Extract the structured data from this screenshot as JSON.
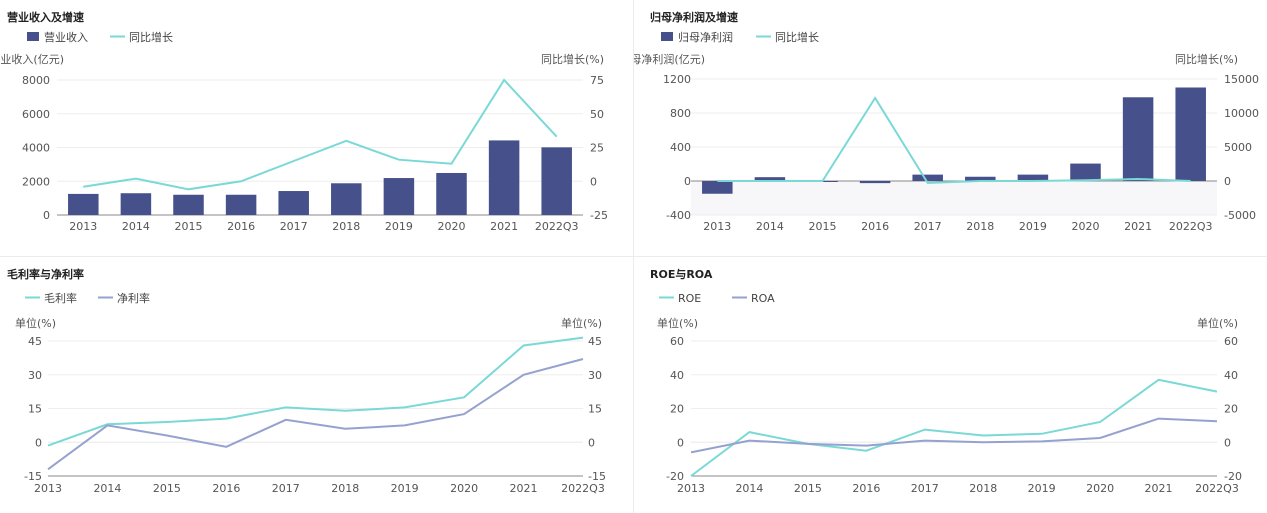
{
  "colors": {
    "bar": "#46508a",
    "growth_line": "#7ad9d6",
    "teal_line": "#7ad9d6",
    "purple_line": "#95a2cf",
    "axis": "#888888",
    "grid": "#eeeeee",
    "text": "#555555"
  },
  "chart_data": [
    {
      "type": "bar",
      "title": "营业收入及增速",
      "categories": [
        "2013",
        "2014",
        "2015",
        "2016",
        "2017",
        "2018",
        "2019",
        "2020",
        "2021",
        "2022Q3"
      ],
      "series": [
        {
          "name": "营业收入",
          "type": "bar",
          "axis": "left",
          "values": [
            1250,
            1290,
            1200,
            1200,
            1420,
            1880,
            2190,
            2490,
            4420,
            4010
          ]
        },
        {
          "name": "同比增长",
          "type": "line",
          "axis": "right",
          "values": [
            -4,
            2,
            -6,
            0,
            15,
            30,
            16,
            13,
            75,
            33
          ]
        }
      ],
      "ylabel_left": "营业收入(亿元)",
      "ylabel_right": "同比增长(%)",
      "ylim_left": [
        0,
        8000
      ],
      "yticks_left": [
        0,
        2000,
        4000,
        6000,
        8000
      ],
      "ylim_right": [
        -25,
        75
      ],
      "yticks_right": [
        -25,
        0,
        25,
        50,
        75
      ],
      "legend": "top-left"
    },
    {
      "type": "bar",
      "title": "归母净利润及增速",
      "categories": [
        "2013",
        "2014",
        "2015",
        "2016",
        "2017",
        "2018",
        "2019",
        "2020",
        "2021",
        "2022Q3"
      ],
      "series": [
        {
          "name": "归母净利润",
          "type": "bar",
          "axis": "left",
          "values": [
            -150,
            45,
            0,
            -25,
            75,
            50,
            75,
            205,
            985,
            1100
          ]
        },
        {
          "name": "同比增长",
          "type": "line",
          "axis": "right",
          "values": [
            0,
            0,
            0,
            12200,
            -300,
            0,
            0,
            100,
            300,
            0
          ]
        }
      ],
      "ylabel_left": "归母净利润(亿元)",
      "ylabel_right": "同比增长(%)",
      "ylim_left": [
        -400,
        1200
      ],
      "yticks_left": [
        -400,
        0,
        400,
        800,
        1200
      ],
      "ylim_right": [
        -5000,
        15000
      ],
      "yticks_right": [
        -5000,
        0,
        5000,
        10000,
        15000
      ],
      "legend": "top-left"
    },
    {
      "type": "line",
      "title": "毛利率与净利率",
      "categories": [
        "2013",
        "2014",
        "2015",
        "2016",
        "2017",
        "2018",
        "2019",
        "2020",
        "2021",
        "2022Q3"
      ],
      "series": [
        {
          "name": "毛利率",
          "values": [
            -1.5,
            8,
            9,
            10.5,
            15.5,
            14,
            15.5,
            20,
            43,
            46.5
          ]
        },
        {
          "name": "净利率",
          "values": [
            -12,
            7.5,
            3,
            -2,
            10,
            6,
            7.5,
            12.5,
            30,
            37
          ]
        }
      ],
      "ylabel_left": "单位(%)",
      "ylabel_right": "单位(%)",
      "ylim": [
        -15,
        45
      ],
      "yticks": [
        -15,
        0,
        15,
        30,
        45
      ],
      "legend": "top-left"
    },
    {
      "type": "line",
      "title": "ROE与ROA",
      "categories": [
        "2013",
        "2014",
        "2015",
        "2016",
        "2017",
        "2018",
        "2019",
        "2020",
        "2021",
        "2022Q3"
      ],
      "series": [
        {
          "name": "ROE",
          "values": [
            -20,
            6,
            -1,
            -5,
            7.5,
            4,
            5,
            12,
            37,
            30
          ]
        },
        {
          "name": "ROA",
          "values": [
            -6,
            1,
            -1,
            -2,
            1,
            0,
            0.5,
            2.5,
            14,
            12.5
          ]
        }
      ],
      "ylabel_left": "单位(%)",
      "ylabel_right": "单位(%)",
      "ylim": [
        -20,
        60
      ],
      "yticks": [
        -20,
        0,
        20,
        40,
        60
      ],
      "legend": "top-left"
    }
  ]
}
